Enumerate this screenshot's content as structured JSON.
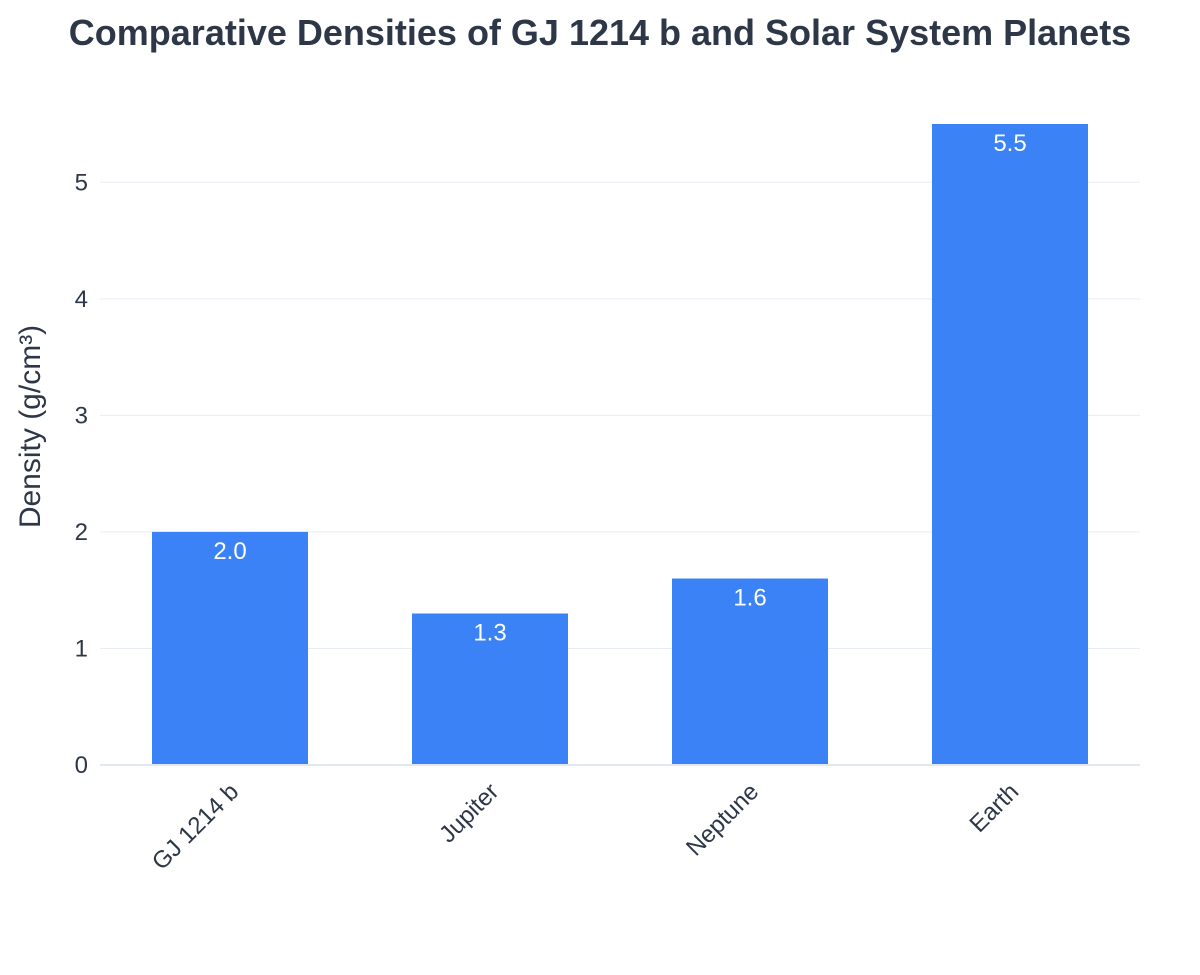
{
  "chart_data": {
    "type": "bar",
    "title": "Comparative Densities of GJ 1214 b and Solar System Planets",
    "xlabel": "",
    "ylabel": "Density (g/cm³)",
    "categories": [
      "GJ 1214 b",
      "Jupiter",
      "Neptune",
      "Earth"
    ],
    "values": [
      2.0,
      1.3,
      1.6,
      5.5
    ],
    "value_labels": [
      "2.0",
      "1.3",
      "1.6",
      "5.5"
    ],
    "y_ticks": [
      0,
      1,
      2,
      3,
      4,
      5
    ],
    "ylim": [
      0,
      5.5
    ],
    "grid": true,
    "legend": "none",
    "colors": {
      "bar": "#3b82f6",
      "grid": "#e8edf3",
      "axis_line": "#e2e8f0",
      "text": "#2d3748",
      "bar_label": "#ffffff"
    }
  }
}
